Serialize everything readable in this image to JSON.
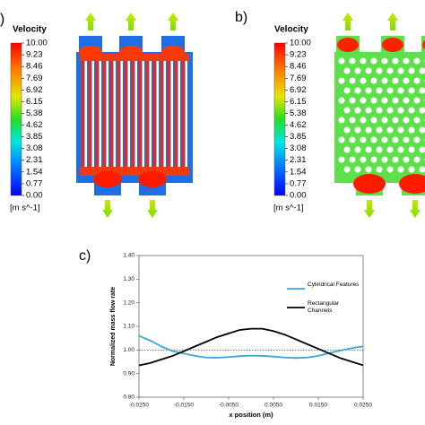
{
  "chart_data": [
    {
      "type": "contour",
      "label": "a)",
      "title": "Velocity",
      "unit": "[m s^-1]",
      "clim": [
        0,
        10
      ],
      "colormap": "jet",
      "features": "channels",
      "ticks": [
        {
          "value": 10,
          "label": "10.00"
        },
        {
          "value": 9.23,
          "label": "9.23"
        },
        {
          "value": 8.46,
          "label": "8.46"
        },
        {
          "value": 7.69,
          "label": "7.69"
        },
        {
          "value": 6.92,
          "label": "6.92"
        },
        {
          "value": 6.15,
          "label": "6.15"
        },
        {
          "value": 5.38,
          "label": "5.38"
        },
        {
          "value": 4.62,
          "label": "4.62"
        },
        {
          "value": 3.85,
          "label": "3.85"
        },
        {
          "value": 3.08,
          "label": "3.08"
        },
        {
          "value": 2.31,
          "label": "2.31"
        },
        {
          "value": 1.54,
          "label": "1.54"
        },
        {
          "value": 0.77,
          "label": "0.77"
        },
        {
          "value": 0,
          "label": "0.00"
        }
      ]
    },
    {
      "type": "contour",
      "label": "b)",
      "title": "Velocity",
      "unit": "[m s^-1]",
      "clim": [
        0,
        10
      ],
      "colormap": "jet",
      "features": "cylinders",
      "ticks": [
        {
          "value": 10,
          "label": "10.00"
        },
        {
          "value": 9.23,
          "label": "9.23"
        },
        {
          "value": 8.46,
          "label": "8.46"
        },
        {
          "value": 7.69,
          "label": "7.69"
        },
        {
          "value": 6.92,
          "label": "6.92"
        },
        {
          "value": 6.15,
          "label": "6.15"
        },
        {
          "value": 5.38,
          "label": "5.38"
        },
        {
          "value": 4.62,
          "label": "4.62"
        },
        {
          "value": 3.85,
          "label": "3.85"
        },
        {
          "value": 3.08,
          "label": "3.08"
        },
        {
          "value": 2.31,
          "label": "2.31"
        },
        {
          "value": 1.54,
          "label": "1.54"
        },
        {
          "value": 0.77,
          "label": "0.77"
        },
        {
          "value": 0,
          "label": "0.00"
        }
      ]
    },
    {
      "type": "line",
      "label": "c)",
      "x_label": "x position (m)",
      "y_label": "Normalized mass flow rate",
      "x": [
        -0.025,
        -0.0225,
        -0.02,
        -0.0175,
        -0.015,
        -0.0125,
        -0.01,
        -0.0075,
        -0.005,
        -0.0025,
        0,
        0.0025,
        0.005,
        0.0075,
        0.01,
        0.0125,
        0.015,
        0.0175,
        0.02,
        0.0225,
        0.025
      ],
      "series": [
        {
          "name": "Cylindrical Features",
          "color": "#3aa7dc",
          "values": [
            1.06,
            1.04,
            1.015,
            0.995,
            0.985,
            0.975,
            0.968,
            0.967,
            0.97,
            0.974,
            0.976,
            0.975,
            0.972,
            0.968,
            0.966,
            0.968,
            0.975,
            0.987,
            0.998,
            1.008,
            1.015
          ]
        },
        {
          "name": "Rectangular Channels",
          "color": "#000000",
          "values": [
            0.935,
            0.945,
            0.96,
            0.975,
            0.995,
            1.015,
            1.035,
            1.055,
            1.07,
            1.085,
            1.09,
            1.09,
            1.08,
            1.065,
            1.045,
            1.025,
            1.005,
            0.985,
            0.965,
            0.95,
            0.935
          ]
        }
      ],
      "reference_line": 1,
      "xlim": [
        -0.025,
        0.025
      ],
      "xticks": [
        {
          "value": -0.025,
          "label": "-0.0250"
        },
        {
          "value": -0.015,
          "label": "-0.0150"
        },
        {
          "value": -0.005,
          "label": "-0.0050"
        },
        {
          "value": 0.005,
          "label": "0.0050"
        },
        {
          "value": 0.015,
          "label": "0.0150"
        },
        {
          "value": 0.025,
          "label": "0.0250"
        }
      ],
      "ylim": [
        0.8,
        1.4
      ],
      "yticks": [
        {
          "value": 0.8,
          "label": "0.80"
        },
        {
          "value": 0.9,
          "label": "0.90"
        },
        {
          "value": 1,
          "label": "1.00"
        },
        {
          "value": 1.1,
          "label": "1.10"
        },
        {
          "value": 1.2,
          "label": "1.20"
        },
        {
          "value": 1.3,
          "label": "1.30"
        },
        {
          "value": 1.4,
          "label": "1.40"
        }
      ],
      "legend": "upper right"
    }
  ]
}
